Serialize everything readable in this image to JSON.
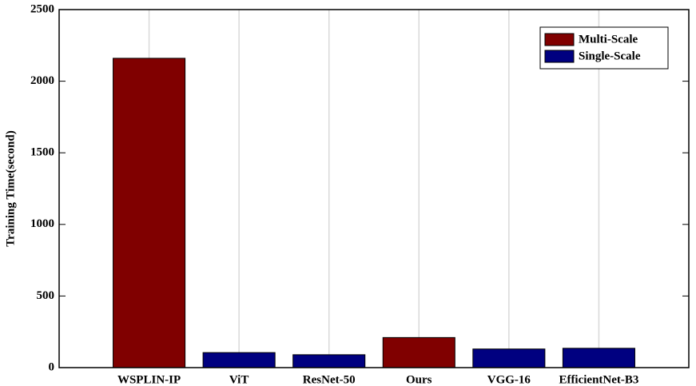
{
  "chart_data": {
    "type": "bar",
    "y_label": "Training Time(second)",
    "categories": [
      "WSPLIN-IP",
      "ViT",
      "ResNet-50",
      "Ours",
      "VGG-16",
      "EfficientNet-B3"
    ],
    "series": [
      {
        "name": "Multi-Scale",
        "color": "#800000",
        "values": [
          2160,
          null,
          null,
          210,
          null,
          null
        ]
      },
      {
        "name": "Single-Scale",
        "color": "#000080",
        "values": [
          null,
          105,
          90,
          null,
          130,
          135
        ]
      }
    ],
    "ylim": [
      0,
      2500
    ],
    "yticks": [
      0,
      500,
      1000,
      1500,
      2000,
      2500
    ],
    "grid": "x",
    "legend": "top-right"
  }
}
